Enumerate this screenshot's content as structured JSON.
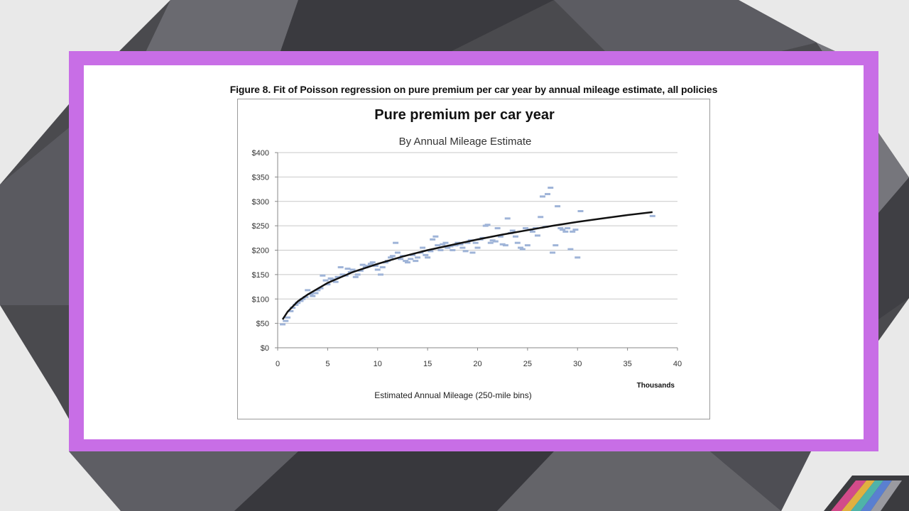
{
  "figure_caption": "Figure 8. Fit of Poisson regression on pure premium per car year by annual mileage estimate, all policies",
  "colors": {
    "frame": "#c86ee6",
    "points": "#9fb4d8",
    "fit_line": "#111111",
    "grid": "#c8c8c8"
  },
  "chart_data": {
    "type": "scatter",
    "title": "Pure premium per car year",
    "subtitle": "By Annual Mileage Estimate",
    "xlabel": "Estimated Annual Mileage (250-mile bins)",
    "x_unit_label": "Thousands",
    "ylabel": "",
    "xlim": [
      0,
      40
    ],
    "ylim": [
      0,
      400
    ],
    "x_ticks": [
      0,
      5,
      10,
      15,
      20,
      25,
      30,
      35,
      40
    ],
    "y_ticks": [
      0,
      50,
      100,
      150,
      200,
      250,
      300,
      350,
      400
    ],
    "y_tick_labels": [
      "$0",
      "$50",
      "$100",
      "$150",
      "$200",
      "$250",
      "$300",
      "$350",
      "$400"
    ],
    "grid": true,
    "legend": "none",
    "series": [
      {
        "kind": "points",
        "points": [
          [
            0.5,
            48
          ],
          [
            0.8,
            55
          ],
          [
            1.0,
            62
          ],
          [
            1.3,
            75
          ],
          [
            1.5,
            82
          ],
          [
            1.8,
            88
          ],
          [
            2.0,
            92
          ],
          [
            2.3,
            96
          ],
          [
            2.5,
            100
          ],
          [
            2.8,
            104
          ],
          [
            3.0,
            118
          ],
          [
            3.3,
            110
          ],
          [
            3.5,
            106
          ],
          [
            3.8,
            112
          ],
          [
            4.0,
            118
          ],
          [
            4.3,
            122
          ],
          [
            4.5,
            148
          ],
          [
            4.8,
            138
          ],
          [
            5.0,
            130
          ],
          [
            5.3,
            142
          ],
          [
            5.5,
            140
          ],
          [
            5.8,
            135
          ],
          [
            6.0,
            145
          ],
          [
            6.3,
            165
          ],
          [
            6.5,
            150
          ],
          [
            6.8,
            148
          ],
          [
            7.0,
            162
          ],
          [
            7.3,
            155
          ],
          [
            7.5,
            160
          ],
          [
            7.8,
            145
          ],
          [
            8.0,
            150
          ],
          [
            8.3,
            158
          ],
          [
            8.5,
            170
          ],
          [
            8.8,
            165
          ],
          [
            9.0,
            168
          ],
          [
            9.3,
            172
          ],
          [
            9.5,
            175
          ],
          [
            9.8,
            168
          ],
          [
            10.0,
            160
          ],
          [
            10.3,
            150
          ],
          [
            10.5,
            165
          ],
          [
            10.8,
            175
          ],
          [
            11.0,
            178
          ],
          [
            11.3,
            185
          ],
          [
            11.5,
            188
          ],
          [
            11.8,
            215
          ],
          [
            12.0,
            195
          ],
          [
            12.3,
            182
          ],
          [
            12.5,
            188
          ],
          [
            12.8,
            178
          ],
          [
            13.0,
            175
          ],
          [
            13.3,
            182
          ],
          [
            13.5,
            190
          ],
          [
            13.8,
            178
          ],
          [
            14.0,
            185
          ],
          [
            14.3,
            195
          ],
          [
            14.5,
            205
          ],
          [
            14.8,
            190
          ],
          [
            15.0,
            185
          ],
          [
            15.3,
            198
          ],
          [
            15.5,
            222
          ],
          [
            15.8,
            228
          ],
          [
            16.0,
            210
          ],
          [
            16.3,
            200
          ],
          [
            16.5,
            212
          ],
          [
            16.8,
            215
          ],
          [
            17.0,
            205
          ],
          [
            17.3,
            208
          ],
          [
            17.5,
            200
          ],
          [
            17.8,
            210
          ],
          [
            18.0,
            215
          ],
          [
            18.3,
            212
          ],
          [
            18.5,
            205
          ],
          [
            18.8,
            198
          ],
          [
            19.0,
            215
          ],
          [
            19.3,
            220
          ],
          [
            19.5,
            195
          ],
          [
            19.8,
            215
          ],
          [
            20.0,
            205
          ],
          [
            20.3,
            222
          ],
          [
            20.5,
            225
          ],
          [
            20.8,
            250
          ],
          [
            21.0,
            252
          ],
          [
            21.3,
            215
          ],
          [
            21.5,
            220
          ],
          [
            21.8,
            218
          ],
          [
            22.0,
            245
          ],
          [
            22.3,
            228
          ],
          [
            22.5,
            212
          ],
          [
            22.8,
            210
          ],
          [
            23.0,
            265
          ],
          [
            23.3,
            235
          ],
          [
            23.5,
            240
          ],
          [
            23.8,
            228
          ],
          [
            24.0,
            215
          ],
          [
            24.3,
            205
          ],
          [
            24.5,
            202
          ],
          [
            24.8,
            245
          ],
          [
            25.0,
            210
          ],
          [
            25.3,
            242
          ],
          [
            25.5,
            238
          ],
          [
            25.8,
            245
          ],
          [
            26.0,
            230
          ],
          [
            26.3,
            268
          ],
          [
            26.5,
            310
          ],
          [
            26.8,
            248
          ],
          [
            27.0,
            315
          ],
          [
            27.3,
            328
          ],
          [
            27.5,
            195
          ],
          [
            27.8,
            210
          ],
          [
            28.0,
            290
          ],
          [
            28.3,
            245
          ],
          [
            28.5,
            242
          ],
          [
            28.8,
            238
          ],
          [
            29.0,
            245
          ],
          [
            29.3,
            202
          ],
          [
            29.5,
            238
          ],
          [
            29.8,
            242
          ],
          [
            30.0,
            185
          ],
          [
            30.3,
            280
          ],
          [
            37.5,
            270
          ]
        ]
      },
      {
        "kind": "fit_line",
        "name": "",
        "x": [
          0.5,
          1,
          2,
          3,
          5,
          7.5,
          10,
          12.5,
          15,
          17.5,
          20,
          22.5,
          25,
          27.5,
          30,
          32.5,
          35,
          37.5
        ],
        "y": [
          58,
          74,
          95,
          109,
          133,
          155,
          172,
          187,
          200,
          211,
          222,
          232,
          241,
          250,
          258,
          265,
          272,
          278
        ]
      }
    ]
  }
}
